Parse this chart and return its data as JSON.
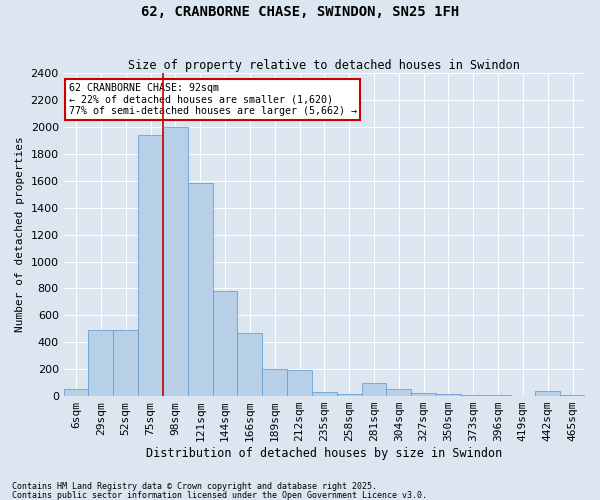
{
  "title": "62, CRANBORNE CHASE, SWINDON, SN25 1FH",
  "subtitle": "Size of property relative to detached houses in Swindon",
  "xlabel": "Distribution of detached houses by size in Swindon",
  "ylabel": "Number of detached properties",
  "footnote1": "Contains HM Land Registry data © Crown copyright and database right 2025.",
  "footnote2": "Contains public sector information licensed under the Open Government Licence v3.0.",
  "annotation_title": "62 CRANBORNE CHASE: 92sqm",
  "annotation_line1": "← 22% of detached houses are smaller (1,620)",
  "annotation_line2": "77% of semi-detached houses are larger (5,662) →",
  "bar_color": "#b8cfe8",
  "bar_edge_color": "#6b9fd4",
  "vline_color": "#cc0000",
  "vline_x": 3.5,
  "categories": [
    "6sqm",
    "29sqm",
    "52sqm",
    "75sqm",
    "98sqm",
    "121sqm",
    "144sqm",
    "166sqm",
    "189sqm",
    "212sqm",
    "235sqm",
    "258sqm",
    "281sqm",
    "304sqm",
    "327sqm",
    "350sqm",
    "373sqm",
    "396sqm",
    "419sqm",
    "442sqm",
    "465sqm"
  ],
  "values": [
    55,
    490,
    490,
    1940,
    2000,
    1580,
    780,
    470,
    200,
    195,
    30,
    15,
    100,
    50,
    20,
    15,
    10,
    5,
    0,
    40,
    10
  ],
  "ylim": [
    0,
    2400
  ],
  "yticks": [
    0,
    200,
    400,
    600,
    800,
    1000,
    1200,
    1400,
    1600,
    1800,
    2000,
    2200,
    2400
  ],
  "bg_color": "#dce6f1",
  "plot_bg_color": "#dce6f1",
  "grid_color": "#ffffff",
  "annotation_box_color": "#ffffff",
  "annotation_box_edge_color": "#cc0000",
  "figsize": [
    6.0,
    5.0
  ],
  "dpi": 100
}
